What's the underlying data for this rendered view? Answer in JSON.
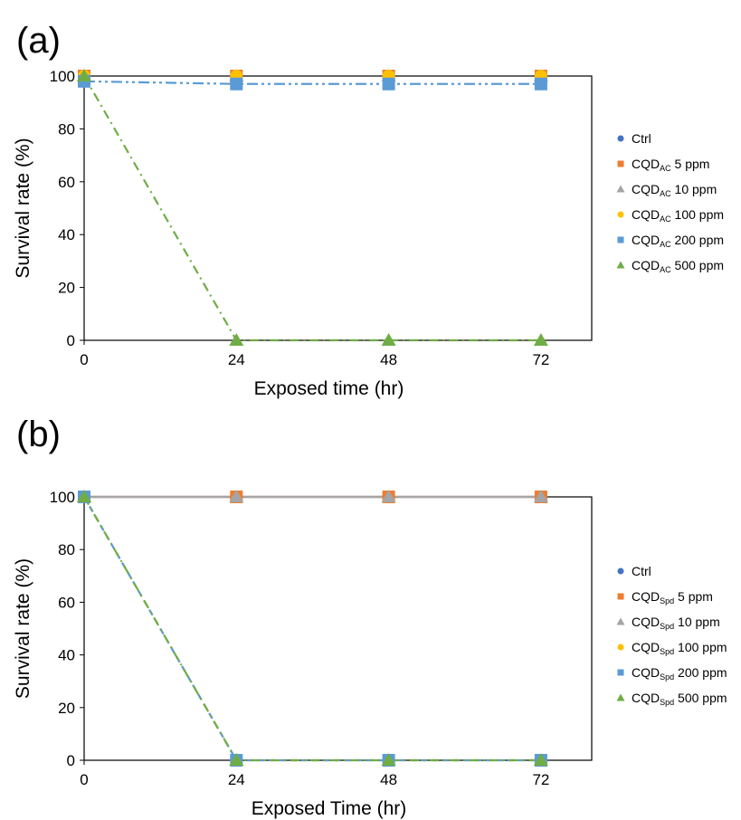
{
  "chart_data": [
    {
      "type": "line",
      "panel_label": "(a)",
      "xlabel": "Exposed time (hr)",
      "ylabel": "Survival rate (%)",
      "x": [
        0,
        24,
        48,
        72
      ],
      "xticks": [
        "0",
        "24",
        "48",
        "72"
      ],
      "xlim": [
        0,
        80
      ],
      "ylim": [
        0,
        100
      ],
      "yticks": [
        "0",
        "20",
        "40",
        "60",
        "80",
        "100"
      ],
      "grid": false,
      "legend_position": "right",
      "series": [
        {
          "name": "Ctrl",
          "subscript": "",
          "suffix": "",
          "values": [
            100,
            100,
            100,
            100
          ],
          "color": "#4472C4",
          "marker": "circle",
          "line": "none"
        },
        {
          "name": "CQD",
          "subscript": "AC",
          "suffix": " 5 ppm",
          "values": [
            100,
            100,
            100,
            100
          ],
          "color": "#ED7D31",
          "marker": "square",
          "line": "none"
        },
        {
          "name": "CQD",
          "subscript": "AC",
          "suffix": " 10 ppm",
          "values": [
            100,
            100,
            100,
            100
          ],
          "color": "#A5A5A5",
          "marker": "triangle",
          "line": "none"
        },
        {
          "name": "CQD",
          "subscript": "AC",
          "suffix": " 100 ppm",
          "values": [
            100,
            100,
            100,
            100
          ],
          "color": "#FFC000",
          "marker": "circle",
          "line": "none"
        },
        {
          "name": "CQD",
          "subscript": "AC",
          "suffix": " 200 ppm",
          "values": [
            98,
            97,
            97,
            97
          ],
          "color": "#5B9BD5",
          "marker": "square",
          "line": "dashdotdot"
        },
        {
          "name": "CQD",
          "subscript": "AC",
          "suffix": " 500 ppm",
          "values": [
            100,
            0,
            0,
            0
          ],
          "color": "#70AD47",
          "marker": "triangle",
          "line": "dashdot"
        }
      ]
    },
    {
      "type": "line",
      "panel_label": "(b)",
      "xlabel": "Exposed Time (hr)",
      "ylabel": "Survival rate (%)",
      "x": [
        0,
        24,
        48,
        72
      ],
      "xticks": [
        "0",
        "24",
        "48",
        "72"
      ],
      "xlim": [
        0,
        80
      ],
      "ylim": [
        0,
        100
      ],
      "yticks": [
        "0",
        "20",
        "40",
        "60",
        "80",
        "100"
      ],
      "grid": false,
      "legend_position": "right",
      "series": [
        {
          "name": "Ctrl",
          "subscript": "",
          "suffix": "",
          "values": [
            100,
            100,
            100,
            100
          ],
          "color": "#4472C4",
          "marker": "circle",
          "line": "solid"
        },
        {
          "name": "CQD",
          "subscript": "Spd",
          "suffix": " 5 ppm",
          "values": [
            100,
            100,
            100,
            100
          ],
          "color": "#ED7D31",
          "marker": "square",
          "line": "solid"
        },
        {
          "name": "CQD",
          "subscript": "Spd",
          "suffix": " 10 ppm",
          "values": [
            100,
            100,
            100,
            100
          ],
          "color": "#A5A5A5",
          "marker": "triangle",
          "line": "solid"
        },
        {
          "name": "CQD",
          "subscript": "Spd",
          "suffix": " 100 ppm",
          "values": [
            100,
            0,
            0,
            0
          ],
          "color": "#FFC000",
          "marker": "circle",
          "line": "dash"
        },
        {
          "name": "CQD",
          "subscript": "Spd",
          "suffix": " 200 ppm",
          "values": [
            100,
            0,
            0,
            0
          ],
          "color": "#5B9BD5",
          "marker": "square",
          "line": "dash"
        },
        {
          "name": "CQD",
          "subscript": "Spd",
          "suffix": " 500 ppm",
          "values": [
            100,
            0,
            0,
            0
          ],
          "color": "#70AD47",
          "marker": "triangle",
          "line": "dashdot"
        }
      ]
    }
  ]
}
